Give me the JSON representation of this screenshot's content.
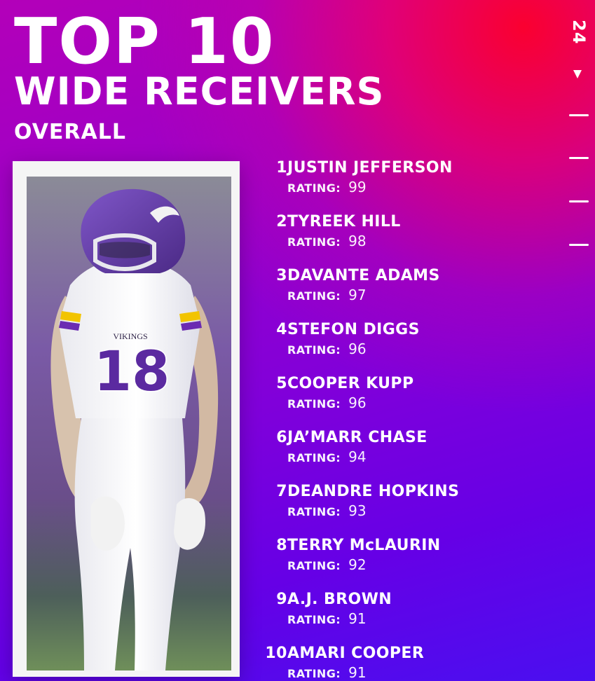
{
  "header": {
    "line1": "TOP 10",
    "line2": "WIDE RECEIVERS",
    "subtitle": "OVERALL"
  },
  "brand": {
    "edition": "24"
  },
  "players": [
    {
      "rank": "1",
      "name": "JUSTIN JEFFERSON",
      "rating_label": "RATING:",
      "rating_value": "99"
    },
    {
      "rank": "2",
      "name": "TYREEK HILL",
      "rating_label": "RATING:",
      "rating_value": "98"
    },
    {
      "rank": "3",
      "name": "DAVANTE ADAMS",
      "rating_label": "RATING:",
      "rating_value": "97"
    },
    {
      "rank": "4",
      "name": "STEFON DIGGS",
      "rating_label": "RATING:",
      "rating_value": "96"
    },
    {
      "rank": "5",
      "name": "COOPER KUPP",
      "rating_label": "RATING:",
      "rating_value": "96"
    },
    {
      "rank": "6",
      "name": "JA’MARR CHASE",
      "rating_label": "RATING:",
      "rating_value": "94"
    },
    {
      "rank": "7",
      "name": "DEANDRE HOPKINS",
      "rating_label": "RATING:",
      "rating_value": "93"
    },
    {
      "rank": "8",
      "name": "TERRY McLAURIN",
      "rating_label": "RATING:",
      "rating_value": "92"
    },
    {
      "rank": "9",
      "name": "A.J. BROWN",
      "rating_label": "RATING:",
      "rating_value": "91"
    },
    {
      "rank": "10",
      "name": "AMARI COOPER",
      "rating_label": "RATING:",
      "rating_value": "91"
    }
  ],
  "photo": {
    "jersey_team": "VIKINGS",
    "jersey_number": "18"
  },
  "colors": {
    "accent_purple": "#6c00d8",
    "accent_red": "#ff0040",
    "text": "#ffffff"
  }
}
